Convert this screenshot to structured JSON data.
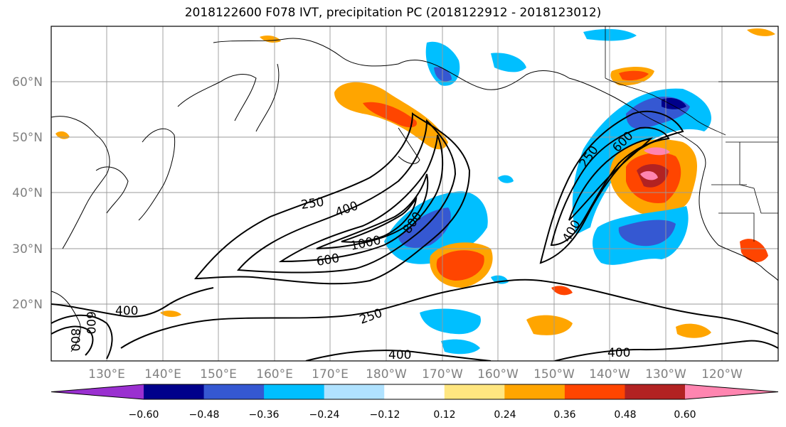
{
  "title": "2018122600 F078 IVT, precipitation PC (2018122912 - 2018123012)",
  "map": {
    "lat_labels": [
      "60°N",
      "50°N",
      "40°N",
      "30°N",
      "20°N"
    ],
    "lon_labels": [
      "130°E",
      "140°E",
      "150°E",
      "160°E",
      "170°E",
      "180°W",
      "170°W",
      "160°W",
      "150°W",
      "140°W",
      "130°W",
      "120°W"
    ],
    "contour_labels": [
      {
        "text": "250",
        "rotate": -8
      },
      {
        "text": "400",
        "rotate": -20
      },
      {
        "text": "1000",
        "rotate": -12
      },
      {
        "text": "800",
        "rotate": -55
      },
      {
        "text": "600",
        "rotate": -10
      },
      {
        "text": "250",
        "rotate": -20
      },
      {
        "text": "400",
        "rotate": 0
      },
      {
        "text": "400",
        "rotate": 0
      },
      {
        "text": "250",
        "rotate": -55
      },
      {
        "text": "600",
        "rotate": -45
      },
      {
        "text": "400",
        "rotate": -60
      },
      {
        "text": "400",
        "rotate": 0
      },
      {
        "text": "800",
        "rotate": 90
      },
      {
        "text": "600",
        "rotate": 90
      }
    ]
  },
  "colorbar": {
    "colors": [
      "#9a30d0",
      "#00008b",
      "#3558d2",
      "#00bfff",
      "#b0e2ff",
      "#ffffff",
      "#ffe680",
      "#ffa500",
      "#ff4500",
      "#b22222",
      "#ff85b0"
    ],
    "tick_labels": [
      "−0.60",
      "−0.48",
      "−0.36",
      "−0.24",
      "−0.12",
      "0.12",
      "0.24",
      "0.36",
      "0.48",
      "0.60"
    ]
  }
}
